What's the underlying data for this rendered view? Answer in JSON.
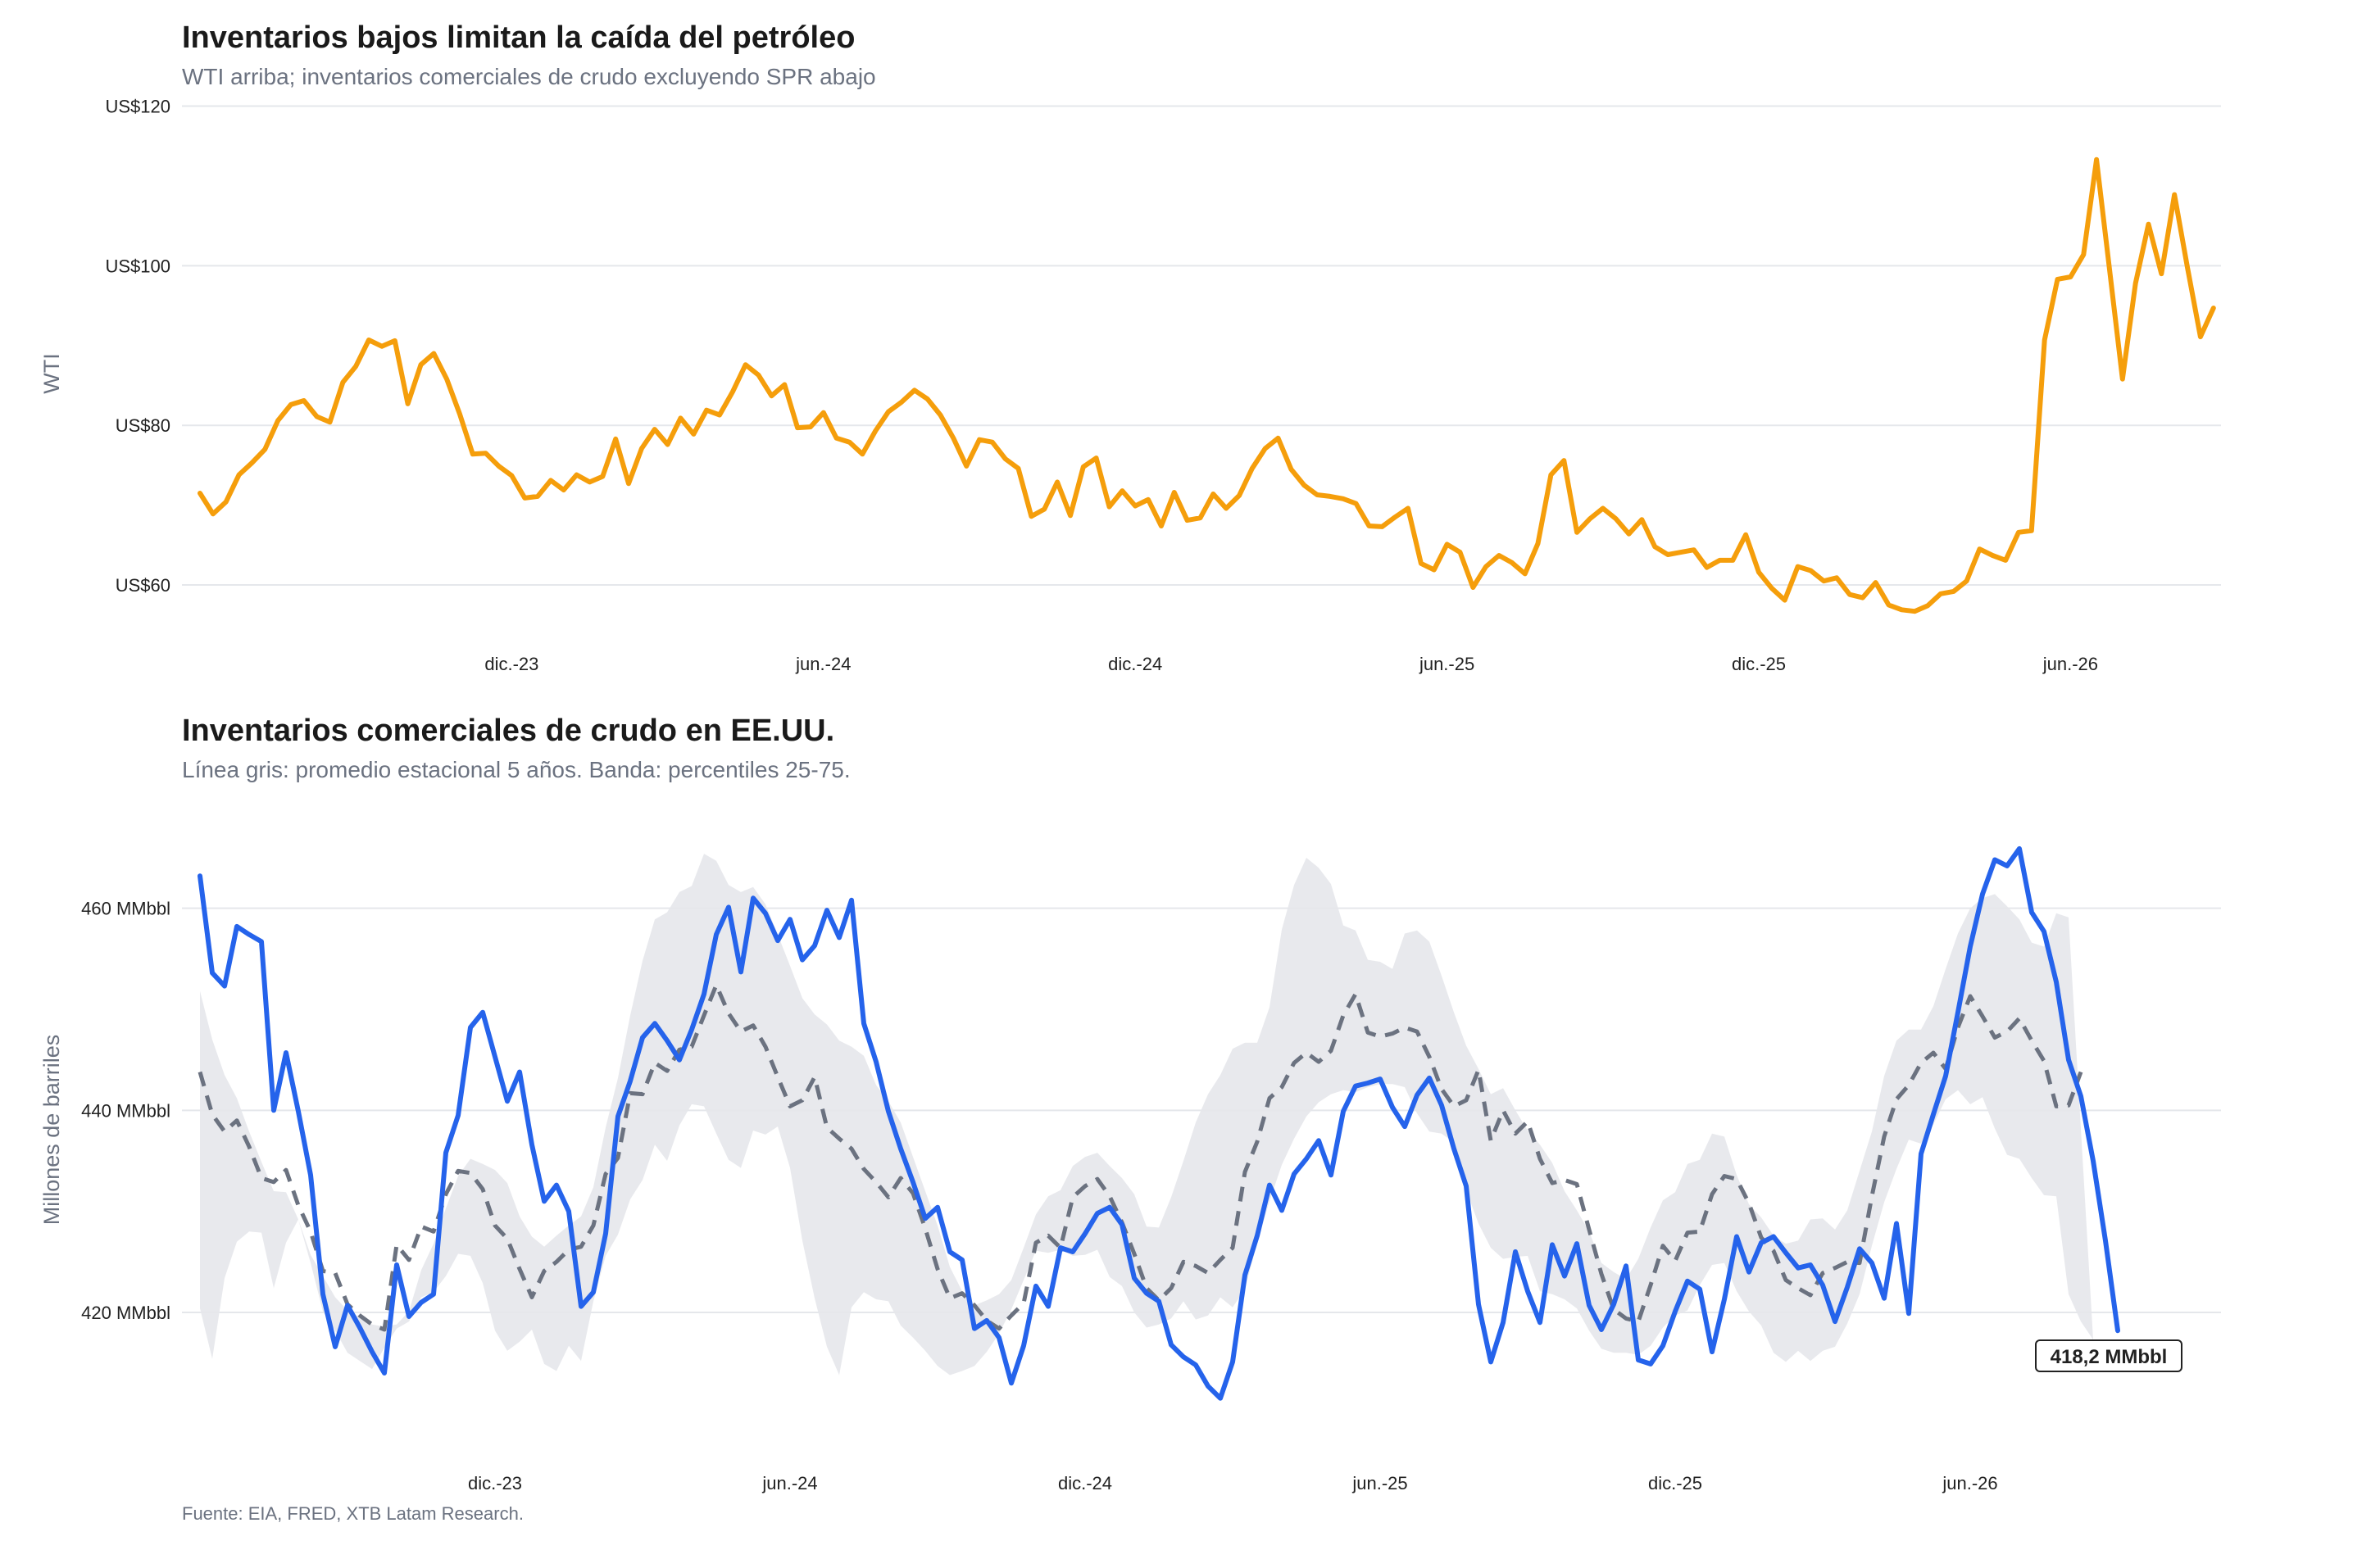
{
  "chart_data": [
    {
      "type": "line",
      "title": "Inventarios bajos limitan la caída del petróleo",
      "subtitle": "WTI arriba; inventarios comerciales de crudo excluyendo SPR abajo",
      "ylabel": "WTI",
      "ylim": [
        52,
        122
      ],
      "yticks": [
        60,
        80,
        100,
        120
      ],
      "ytick_labels": [
        "US$60",
        "US$80",
        "US$100",
        "US$120"
      ],
      "xlim": [
        0,
        154
      ],
      "xticks": [
        24,
        48,
        72,
        96,
        120,
        144
      ],
      "xtick_labels": [
        "dic.-23",
        "jun.-24",
        "dic.-24",
        "jun.-25",
        "dic.-25",
        "jun.-26"
      ],
      "colors": {
        "wti": "#f59e0b"
      },
      "series": [
        {
          "values": [
            71.5,
            68.9,
            70.4,
            73.8,
            75.3,
            77.0,
            80.6,
            82.6,
            83.1,
            81.1,
            80.4,
            85.4,
            87.4,
            90.7,
            89.9,
            90.6,
            82.7,
            87.6,
            89.0,
            85.8,
            81.4,
            76.4,
            76.5,
            74.9,
            73.7,
            70.9,
            71.1,
            73.1,
            71.9,
            73.8,
            72.9,
            73.6,
            78.3,
            72.7,
            77.1,
            79.5,
            77.6,
            80.9,
            78.9,
            81.9,
            81.3,
            84.2,
            87.6,
            86.3,
            83.7,
            85.1,
            79.7,
            79.8,
            81.6,
            78.4,
            77.9,
            76.4,
            79.3,
            81.7,
            82.9,
            84.4,
            83.3,
            81.3,
            78.4,
            74.9,
            78.2,
            77.9,
            75.8,
            74.6,
            68.6,
            69.5,
            72.9,
            68.7,
            74.8,
            75.9,
            69.8,
            71.8,
            69.9,
            70.7,
            67.4,
            71.6,
            68.1,
            68.4,
            71.4,
            69.6,
            71.2,
            74.6,
            77.1,
            78.4,
            74.5,
            72.5,
            71.3,
            71.1,
            70.8,
            70.2,
            67.4,
            67.3,
            68.5,
            69.6,
            62.7,
            61.9,
            65.1,
            64.1,
            59.7,
            62.3,
            63.7,
            62.8,
            61.4,
            65.2,
            73.8,
            75.6,
            66.6,
            68.3,
            69.6,
            68.3,
            66.4,
            68.2,
            64.8,
            63.8,
            64.1,
            64.4,
            62.2,
            63.1,
            63.1,
            66.3,
            61.6,
            59.6,
            58.1,
            62.3,
            61.8,
            60.5,
            60.9,
            58.8,
            58.4,
            60.3,
            57.5,
            56.9,
            56.7,
            57.4,
            58.9,
            59.2,
            60.5,
            64.5,
            63.7,
            63.1,
            66.6,
            66.8,
            90.7,
            98.3,
            98.6,
            101.4,
            113.3,
            99.6,
            85.8,
            97.8,
            105.2,
            99.0,
            108.9,
            99.8,
            91.1,
            94.7
          ]
        }
      ]
    },
    {
      "type": "line",
      "title": "Inventarios comerciales de crudo en EE.UU.",
      "subtitle": "Línea gris: promedio estacional 5 años. Banda: percentiles 25-75.",
      "ylabel": "Millones de barriles",
      "ylim": [
        408,
        468
      ],
      "yticks": [
        420,
        440,
        460
      ],
      "ytick_labels": [
        "420 MMbbl",
        "440 MMbbl",
        "460 MMbbl"
      ],
      "xlim": [
        0,
        154
      ],
      "xticks": [
        24,
        48,
        72,
        96,
        120,
        144
      ],
      "xtick_labels": [
        "dic.-23",
        "jun.-24",
        "dic.-24",
        "jun.-25",
        "dic.-25",
        "jun.-26"
      ],
      "annotation": "418,2 MMbbl",
      "caption": "Fuente: EIA, FRED, XTB Latam Research.",
      "colors": {
        "actual": "#2563eb",
        "average": "#6b7280",
        "band": "#e5e7eb"
      },
      "series": [
        {
          "values": [
            463.2,
            453.6,
            452.3,
            458.2,
            457.4,
            456.7,
            440.0,
            445.7,
            439.9,
            433.6,
            421.8,
            416.6,
            420.7,
            418.5,
            416.1,
            414.0,
            424.7,
            419.6,
            421.0,
            421.8,
            435.8,
            439.5,
            448.2,
            449.7,
            445.3,
            440.9,
            443.8,
            436.6,
            431.0,
            432.6,
            430.0,
            420.6,
            422.0,
            427.8,
            439.4,
            442.9,
            447.2,
            448.6,
            446.9,
            445.0,
            448.0,
            451.5,
            457.4,
            460.1,
            453.7,
            461.0,
            459.5,
            456.8,
            458.9,
            454.9,
            456.3,
            459.8,
            457.1,
            460.8,
            448.6,
            444.8,
            439.9,
            436.2,
            432.9,
            429.3,
            430.4,
            426.0,
            425.2,
            418.4,
            419.2,
            417.5,
            413.0,
            416.7,
            422.6,
            420.6,
            426.4,
            426.0,
            427.8,
            429.8,
            430.4,
            428.7,
            423.4,
            421.9,
            421.1,
            416.8,
            415.6,
            414.8,
            412.7,
            411.5,
            415.1,
            423.7,
            427.6,
            432.6,
            430.1,
            433.7,
            435.2,
            437.0,
            433.6,
            439.9,
            442.4,
            442.7,
            443.1,
            440.3,
            438.4,
            441.5,
            443.2,
            440.5,
            436.2,
            432.5,
            420.8,
            415.1,
            419.0,
            426.0,
            422.1,
            419.0,
            426.7,
            423.6,
            426.8,
            420.7,
            418.3,
            420.8,
            424.6,
            415.3,
            414.9,
            416.7,
            420.1,
            423.1,
            422.3,
            416.1,
            421.3,
            427.5,
            424.0,
            426.9,
            427.5,
            425.9,
            424.4,
            424.7,
            422.7,
            419.1,
            422.5,
            426.3,
            424.9,
            421.4,
            428.8,
            419.9,
            435.7,
            439.6,
            443.4,
            449.7,
            456.2,
            461.4,
            464.8,
            464.2,
            465.9,
            459.6,
            457.7,
            452.7,
            445.0,
            441.4,
            435.0,
            427.1,
            418.2
          ]
        },
        {
          "values": [
            443.8,
            439.6,
            437.9,
            439.0,
            436.4,
            433.3,
            432.9,
            434.1,
            430.6,
            428.0,
            424.1,
            423.9,
            420.8,
            419.7,
            418.8,
            418.3,
            426.7,
            425.2,
            428.5,
            428.0,
            431.7,
            434.0,
            433.8,
            432.2,
            428.6,
            427.3,
            424.3,
            421.5,
            424.1,
            425.0,
            426.2,
            426.5,
            428.6,
            433.7,
            435.3,
            441.7,
            441.6,
            444.7,
            443.9,
            446.0,
            446.3,
            449.4,
            452.4,
            449.6,
            447.8,
            448.4,
            446.3,
            443.3,
            440.4,
            441.0,
            443.3,
            438.3,
            437.2,
            436.2,
            434.2,
            432.9,
            431.4,
            433.3,
            431.8,
            428.3,
            424.3,
            421.4,
            421.9,
            420.7,
            419.2,
            418.4,
            419.7,
            420.9,
            426.9,
            427.6,
            426.4,
            431.4,
            432.5,
            433.2,
            431.5,
            428.9,
            425.8,
            422.4,
            421.2,
            422.4,
            425.0,
            424.6,
            423.9,
            425.2,
            426.4,
            433.9,
            436.9,
            441.2,
            442.3,
            444.7,
            445.7,
            444.8,
            445.9,
            449.4,
            451.5,
            447.7,
            447.3,
            447.6,
            448.2,
            447.8,
            445.3,
            442.1,
            440.4,
            441.0,
            444.0,
            437.0,
            440.0,
            437.7,
            438.9,
            435.2,
            432.8,
            433.1,
            432.7,
            428.2,
            423.8,
            420.3,
            419.4,
            419.1,
            422.7,
            426.6,
            425.1,
            427.9,
            428.0,
            431.7,
            433.5,
            433.2,
            430.8,
            427.4,
            426.1,
            423.2,
            422.4,
            421.7,
            423.9,
            424.4,
            425.0,
            424.9,
            431.5,
            437.4,
            441.1,
            442.5,
            444.7,
            445.7,
            444.1,
            448.2,
            451.3,
            449.3,
            447.2,
            447.8,
            449.1,
            446.9,
            444.9,
            440.4,
            440.5,
            443.8
          ]
        },
        {
          "values": [
            451.8,
            447.0,
            443.5,
            441.2,
            437.9,
            434.9,
            432.0,
            431.9,
            429.2,
            425.7,
            423.6,
            421.5,
            420.2,
            419.5,
            418.8,
            418.6,
            418.8,
            420.1,
            424.2,
            426.8,
            430.3,
            433.5,
            435.2,
            434.7,
            434.1,
            432.8,
            429.5,
            427.5,
            426.5,
            427.6,
            428.6,
            429.5,
            432.4,
            438.3,
            443.2,
            449.4,
            454.8,
            458.9,
            459.6,
            461.6,
            462.2,
            465.4,
            464.7,
            462.3,
            461.6,
            462.1,
            460.4,
            457.4,
            454.3,
            451.1,
            449.5,
            448.5,
            446.9,
            446.3,
            445.4,
            442.5,
            440.9,
            438.8,
            435.4,
            432.0,
            428.6,
            424.5,
            422.1,
            420.7,
            421.2,
            421.8,
            423.2,
            426.4,
            429.7,
            431.5,
            432.1,
            434.5,
            435.4,
            435.8,
            434.5,
            433.3,
            431.7,
            428.5,
            428.4,
            431.4,
            435.0,
            438.8,
            441.6,
            443.5,
            446.1,
            446.7,
            446.7,
            450.2,
            457.9,
            462.3,
            465.0,
            464.0,
            462.4,
            458.3,
            457.8,
            454.9,
            454.7,
            454.0,
            457.5,
            457.8,
            456.7,
            453.3,
            449.7,
            446.4,
            444.1,
            441.6,
            442.2,
            440.0,
            438.0,
            436.6,
            434.8,
            432.0,
            430.1,
            428.0,
            424.9,
            424.0,
            423.3,
            425.3,
            428.4,
            431.1,
            431.9,
            434.7,
            435.1,
            437.7,
            437.4,
            433.6,
            430.7,
            429.4,
            427.6,
            426.8,
            427.1,
            429.2,
            429.3,
            428.2,
            430.1,
            434.0,
            437.9,
            443.4,
            446.9,
            448.0,
            448.0,
            450.3,
            454.0,
            457.5,
            460.0,
            461.0,
            461.4,
            460.2,
            458.9,
            456.6,
            456.2,
            459.5,
            459.1
          ]
        },
        {
          "values": [
            420.4,
            415.4,
            423.4,
            427.0,
            428.0,
            427.9,
            422.4,
            426.9,
            429.2,
            424.9,
            420.1,
            418.2,
            416.0,
            415.2,
            414.4,
            416.5,
            418.4,
            419.1,
            421.5,
            422.0,
            423.6,
            425.8,
            425.6,
            422.9,
            418.2,
            416.2,
            417.1,
            418.3,
            414.9,
            414.2,
            416.7,
            415.2,
            421.1,
            425.6,
            427.7,
            431.2,
            433.1,
            436.6,
            435.0,
            438.5,
            440.6,
            440.4,
            437.7,
            435.1,
            434.3,
            438.0,
            437.6,
            438.4,
            434.3,
            427.1,
            421.4,
            416.6,
            413.8,
            420.5,
            422.0,
            421.3,
            421.1,
            418.7,
            417.5,
            416.2,
            414.7,
            413.8,
            414.2,
            414.7,
            416.1,
            417.9,
            420.3,
            423.2,
            426.1,
            425.9,
            426.2,
            425.6,
            425.7,
            426.2,
            423.5,
            422.6,
            420.0,
            418.5,
            418.8,
            419.4,
            421.1,
            419.3,
            419.7,
            421.5,
            420.5,
            422.3,
            426.9,
            431.0,
            434.6,
            437.2,
            439.4,
            440.8,
            441.6,
            442.0,
            441.8,
            442.3,
            442.6,
            442.6,
            442.3,
            439.7,
            437.9,
            437.7,
            436.8,
            432.1,
            428.8,
            426.4,
            425.3,
            425.5,
            425.6,
            422.1,
            421.8,
            421.3,
            420.4,
            418.2,
            416.4,
            416.0,
            416.0,
            415.8,
            416.7,
            418.5,
            419.7,
            420.2,
            422.7,
            424.7,
            424.9,
            422.1,
            420.1,
            418.7,
            416.0,
            415.1,
            416.2,
            415.2,
            416.2,
            416.6,
            418.9,
            421.8,
            426.6,
            430.9,
            434.2,
            437.1,
            436.7,
            438.6,
            441.1,
            442.0,
            440.6,
            441.3,
            438.2,
            435.6,
            435.2,
            433.3,
            431.6,
            431.5,
            421.8,
            419.1,
            417.3
          ]
        }
      ]
    }
  ]
}
